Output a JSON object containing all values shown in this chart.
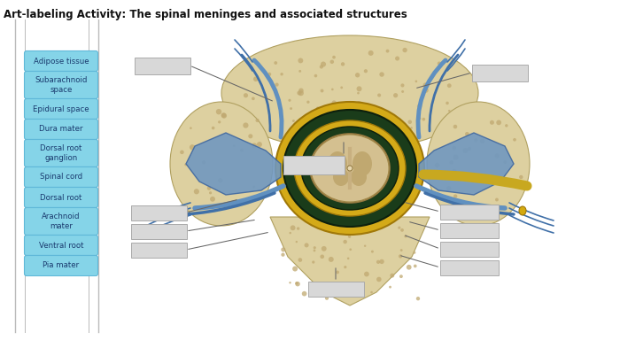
{
  "title": "Art-labeling Activity: The spinal meninges and associated structures",
  "title_fontsize": 8.5,
  "title_fontweight": "bold",
  "background_color": "#ffffff",
  "left_labels": [
    "Adipose tissue",
    "Subarachnoid\nspace",
    "Epidural space",
    "Dura mater",
    "Dorsal root\nganglion",
    "Spinal cord",
    "Dorsal root",
    "Arachnoid\nmater",
    "Ventral root",
    "Pia mater"
  ],
  "label_box_color": "#85d4e8",
  "label_box_edge": "#60b8d8",
  "label_text_color": "#1a3a6e",
  "answer_box_color": "#d8d8d8",
  "answer_box_edge": "#aaaaaa",
  "panel_line_color": "#bbbbbb",
  "bone_fill": "#ddd0a0",
  "bone_edge": "#b0a060",
  "bone_dot": "#c0a870",
  "canal_outer_fill": "#1a3c1a",
  "canal_outer_edge": "#0d200d",
  "gold_ring_fill": "#d4aa18",
  "gold_ring_edge": "#a07808",
  "cord_fill": "#c8b888",
  "cord_edge": "#907840",
  "nerve_blue": "#6090c0",
  "nerve_blue2": "#4070a8",
  "nerve_gold": "#c8a010",
  "line_color": "#666666"
}
